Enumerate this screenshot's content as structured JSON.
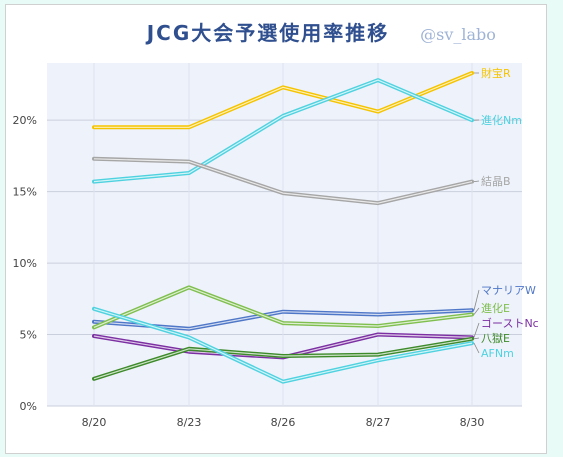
{
  "chart_data": {
    "type": "line",
    "title": "JCG大会予選使用率推移",
    "watermark": "@sv_labo",
    "x": [
      "8/20",
      "8/23",
      "8/26",
      "8/27",
      "8/30"
    ],
    "y_ticks": [
      "0%",
      "5%",
      "10%",
      "15%",
      "20%"
    ],
    "ylim": [
      0,
      24
    ],
    "grid": true,
    "series": [
      {
        "name": "財宝R",
        "color": "#f5c400",
        "values": [
          19.5,
          19.5,
          22.3,
          20.6,
          23.3
        ]
      },
      {
        "name": "進化Nm",
        "color": "#4fd2e0",
        "values": [
          15.7,
          16.3,
          20.3,
          22.8,
          20.0
        ]
      },
      {
        "name": "結晶B",
        "color": "#a6a6a6",
        "values": [
          17.3,
          17.1,
          14.9,
          14.2,
          15.7
        ]
      },
      {
        "name": "マナリアW",
        "color": "#4f77c8",
        "values": [
          5.9,
          5.4,
          6.6,
          6.4,
          6.7
        ]
      },
      {
        "name": "進化E",
        "color": "#7fbf4f",
        "values": [
          5.5,
          8.3,
          5.8,
          5.6,
          6.4
        ]
      },
      {
        "name": "ゴーストNc",
        "color": "#7b2fa2",
        "values": [
          4.9,
          3.8,
          3.4,
          5.0,
          4.8
        ]
      },
      {
        "name": "八獄E",
        "color": "#3d8a2b",
        "values": [
          1.9,
          4.0,
          3.5,
          3.6,
          4.7
        ]
      },
      {
        "name": "AFNm",
        "color": "#4fd2e0",
        "values": [
          6.8,
          4.8,
          1.7,
          3.2,
          4.4
        ]
      }
    ]
  }
}
